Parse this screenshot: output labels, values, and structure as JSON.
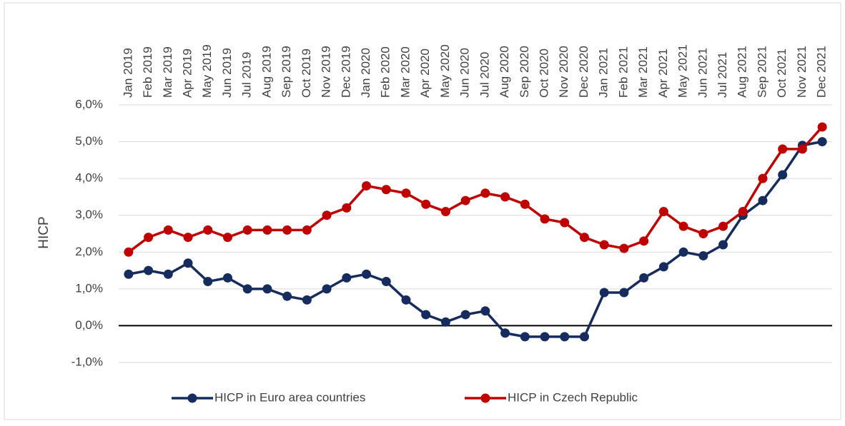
{
  "chart_data": {
    "type": "line",
    "y_label": "HICP",
    "categories": [
      "Jan 2019",
      "Feb 2019",
      "Mar 2019",
      "Apr 2019",
      "May 2019",
      "Jun 2019",
      "Jul 2019",
      "Aug 2019",
      "Sep 2019",
      "Oct 2019",
      "Nov 2019",
      "Dec 2019",
      "Jan 2020",
      "Feb 2020",
      "Mar 2020",
      "Apr 2020",
      "May 2020",
      "Jun 2020",
      "Jul 2020",
      "Aug 2020",
      "Sep 2020",
      "Oct 2020",
      "Nov 2020",
      "Dec 2020",
      "Jan 2021",
      "Feb 2021",
      "Mar 2021",
      "Apr 2021",
      "May 2021",
      "Jun 2021",
      "Jul 2021",
      "Aug 2021",
      "Sep 2021",
      "Oct 2021",
      "Nov 2021",
      "Dec 2021"
    ],
    "series": [
      {
        "name": "HICP in Euro area countries",
        "color": "#172c5e",
        "values": [
          1.4,
          1.5,
          1.4,
          1.7,
          1.2,
          1.3,
          1.0,
          1.0,
          0.8,
          0.7,
          1.0,
          1.3,
          1.4,
          1.2,
          0.7,
          0.3,
          0.1,
          0.3,
          0.4,
          -0.2,
          -0.3,
          -0.3,
          -0.3,
          -0.3,
          0.9,
          0.9,
          1.3,
          1.6,
          2.0,
          1.9,
          2.2,
          3.0,
          3.4,
          4.1,
          4.9,
          5.0
        ]
      },
      {
        "name": "HICP in Czech Republic",
        "color": "#c00000",
        "values": [
          2.0,
          2.4,
          2.6,
          2.4,
          2.6,
          2.4,
          2.6,
          2.6,
          2.6,
          2.6,
          3.0,
          3.2,
          3.8,
          3.7,
          3.6,
          3.3,
          3.1,
          3.4,
          3.6,
          3.5,
          3.3,
          2.9,
          2.8,
          2.4,
          2.2,
          2.1,
          2.3,
          3.1,
          2.7,
          2.5,
          2.7,
          3.1,
          4.0,
          4.8,
          4.8,
          5.4
        ]
      }
    ],
    "ylim": [
      -1,
      6
    ],
    "yticks": [
      {
        "value": -1,
        "label": "-1,0%"
      },
      {
        "value": 0,
        "label": "0,0%"
      },
      {
        "value": 1,
        "label": "1,0%"
      },
      {
        "value": 2,
        "label": "2,0%"
      },
      {
        "value": 3,
        "label": "3,0%"
      },
      {
        "value": 4,
        "label": "4,0%"
      },
      {
        "value": 5,
        "label": "5,0%"
      },
      {
        "value": 6,
        "label": "6,0%"
      }
    ],
    "grid": true,
    "legend": "bottom"
  }
}
